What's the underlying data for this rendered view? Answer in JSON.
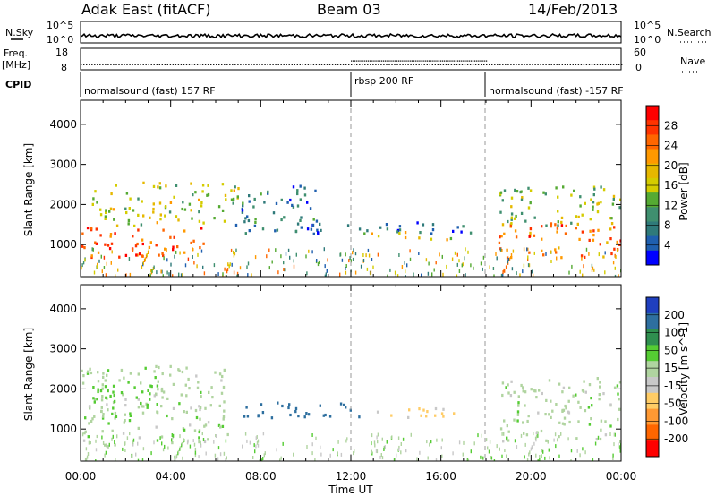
{
  "header": {
    "station": "Adak East (fitACF)",
    "beam": "Beam 03",
    "date": "14/Feb/2013"
  },
  "top_panels": {
    "nsky_label": "N.Sky",
    "nsky_ticks": [
      "10^5",
      "10^0"
    ],
    "nsearch_label": "N.Search",
    "nsearch_ticks": [
      "10^5",
      "10^0"
    ],
    "freq_label_line1": "Freq.",
    "freq_label_line2": "[MHz]",
    "freq_ticks": [
      "18",
      "8"
    ],
    "nave_label": "Nave",
    "nave_ticks": [
      "60",
      "0"
    ],
    "cpid_label": "CPID",
    "cpid_segments": [
      {
        "label": "normalsound (fast) 157 RF",
        "start_hour": 0,
        "end_hour": 12
      },
      {
        "label": "rbsp 200 RF",
        "start_hour": 12,
        "end_hour": 18
      },
      {
        "label": "normalsound (fast) -157 RF",
        "start_hour": 18,
        "end_hour": 24
      }
    ]
  },
  "power_colorbar": {
    "label": "Power [dB]",
    "ticks": [
      "28",
      "24",
      "20",
      "16",
      "12",
      "8",
      "4"
    ],
    "colors": [
      "#ff0000",
      "#ff3300",
      "#ff6600",
      "#ff9900",
      "#e6b800",
      "#d4cc00",
      "#55aa33",
      "#3f8f6f",
      "#2f7a7a",
      "#1f5faf",
      "#0000ff"
    ]
  },
  "velocity_colorbar": {
    "label": "Velocity [m s^-1]",
    "ticks": [
      "200",
      "100",
      "50",
      "15",
      "-15",
      "-50",
      "-100",
      "-200"
    ],
    "colors": [
      "#1f3fbf",
      "#2e6f9f",
      "#2f8f4f",
      "#55cc33",
      "#b0d4a0",
      "#c8c8c8",
      "#ffcc66",
      "#ff9933",
      "#ff6600",
      "#ff0000"
    ]
  },
  "chart_data": [
    {
      "type": "heatmap",
      "quantity": "Power",
      "ylabel": "Slant Range [km]",
      "xlabel": "",
      "ylim": [
        200,
        4600
      ],
      "yticks": [
        1000,
        2000,
        3000,
        4000
      ],
      "xlim_hours": [
        0,
        24
      ],
      "xtick_labels": [
        "00:00",
        "04:00",
        "08:00",
        "12:00",
        "16:00",
        "20:00",
        "00:00"
      ],
      "color_scale": "Power [dB]",
      "approx_regions": [
        {
          "t_start": 0,
          "t_end": 5.5,
          "range_low": 700,
          "range_high": 1500,
          "value_db": 26
        },
        {
          "t_start": 0.5,
          "t_end": 7,
          "range_low": 1500,
          "range_high": 2600,
          "value_db": 16
        },
        {
          "t_start": 6.8,
          "t_end": 10.5,
          "range_low": 1300,
          "range_high": 2500,
          "value_db": 8
        },
        {
          "t_start": 9.5,
          "t_end": 17.5,
          "range_low": 1300,
          "range_high": 1600,
          "value_db": 6
        },
        {
          "t_start": 12.5,
          "t_end": 16.5,
          "range_low": 1150,
          "range_high": 1350,
          "value_db": 18
        },
        {
          "t_start": 18.5,
          "t_end": 24,
          "range_low": 700,
          "range_high": 1600,
          "value_db": 24
        },
        {
          "t_start": 18.5,
          "t_end": 24,
          "range_low": 1500,
          "range_high": 2500,
          "value_db": 14
        }
      ]
    },
    {
      "type": "heatmap",
      "quantity": "Velocity",
      "ylabel": "Slant Range [km]",
      "xlabel": "Time UT",
      "ylim": [
        200,
        4600
      ],
      "yticks": [
        1000,
        2000,
        3000,
        4000
      ],
      "xlim_hours": [
        0,
        24
      ],
      "xtick_labels": [
        "00:00",
        "04:00",
        "08:00",
        "12:00",
        "16:00",
        "20:00",
        "00:00"
      ],
      "color_scale": "Velocity [m s^-1]",
      "approx_regions": [
        {
          "t_start": 0,
          "t_end": 6.5,
          "range_low": 600,
          "range_high": 2600,
          "value_ms": 0
        },
        {
          "t_start": 0.5,
          "t_end": 3.5,
          "range_low": 1300,
          "range_high": 2200,
          "value_ms": 30
        },
        {
          "t_start": 7,
          "t_end": 12.5,
          "range_low": 1300,
          "range_high": 1700,
          "value_ms": 120
        },
        {
          "t_start": 13,
          "t_end": 17.8,
          "range_low": 1300,
          "range_high": 1550,
          "value_ms": -60
        },
        {
          "t_start": 18.5,
          "t_end": 24,
          "range_low": 700,
          "range_high": 2300,
          "value_ms": 0
        }
      ]
    }
  ]
}
